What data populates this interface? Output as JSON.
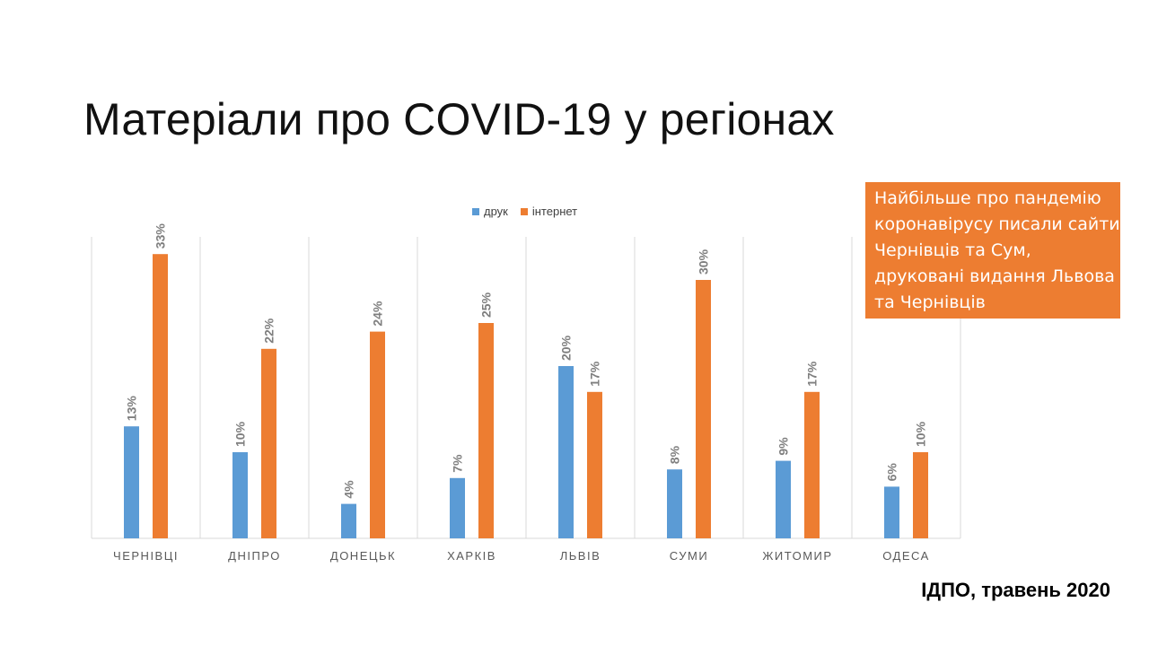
{
  "slide": {
    "title": "Матеріали про COVID-19 у регіонах",
    "callout": "Найбільше про пандемію коронавірусу писали сайти Чернівців та Сум, друковані видання Львова та Чернівців",
    "footer": "ІДПО, травень 2020"
  },
  "colors": {
    "print": "#5b9bd5",
    "internet": "#ed7d31",
    "callout_bg": "#ed7d31"
  },
  "chart_data": {
    "type": "bar",
    "title": "",
    "xlabel": "",
    "ylabel": "",
    "ylim": [
      0,
      35
    ],
    "grid": "vertical category separators",
    "legend_position": "top-center",
    "categories": [
      "ЧЕРНІВЦІ",
      "ДНІПРО",
      "ДОНЕЦЬК",
      "ХАРКІВ",
      "ЛЬВІВ",
      "СУМИ",
      "ЖИТОМИР",
      "ОДЕСА"
    ],
    "series": [
      {
        "name": "друк",
        "values": [
          13,
          10,
          4,
          7,
          20,
          8,
          9,
          6
        ],
        "labels": [
          "13%",
          "10%",
          "4%",
          "7%",
          "20%",
          "8%",
          "9%",
          "6%"
        ]
      },
      {
        "name": "інтернет",
        "values": [
          33,
          22,
          24,
          25,
          17,
          30,
          17,
          10
        ],
        "labels": [
          "33%",
          "22%",
          "24%",
          "25%",
          "17%",
          "30%",
          "17%",
          "10%"
        ]
      }
    ]
  }
}
